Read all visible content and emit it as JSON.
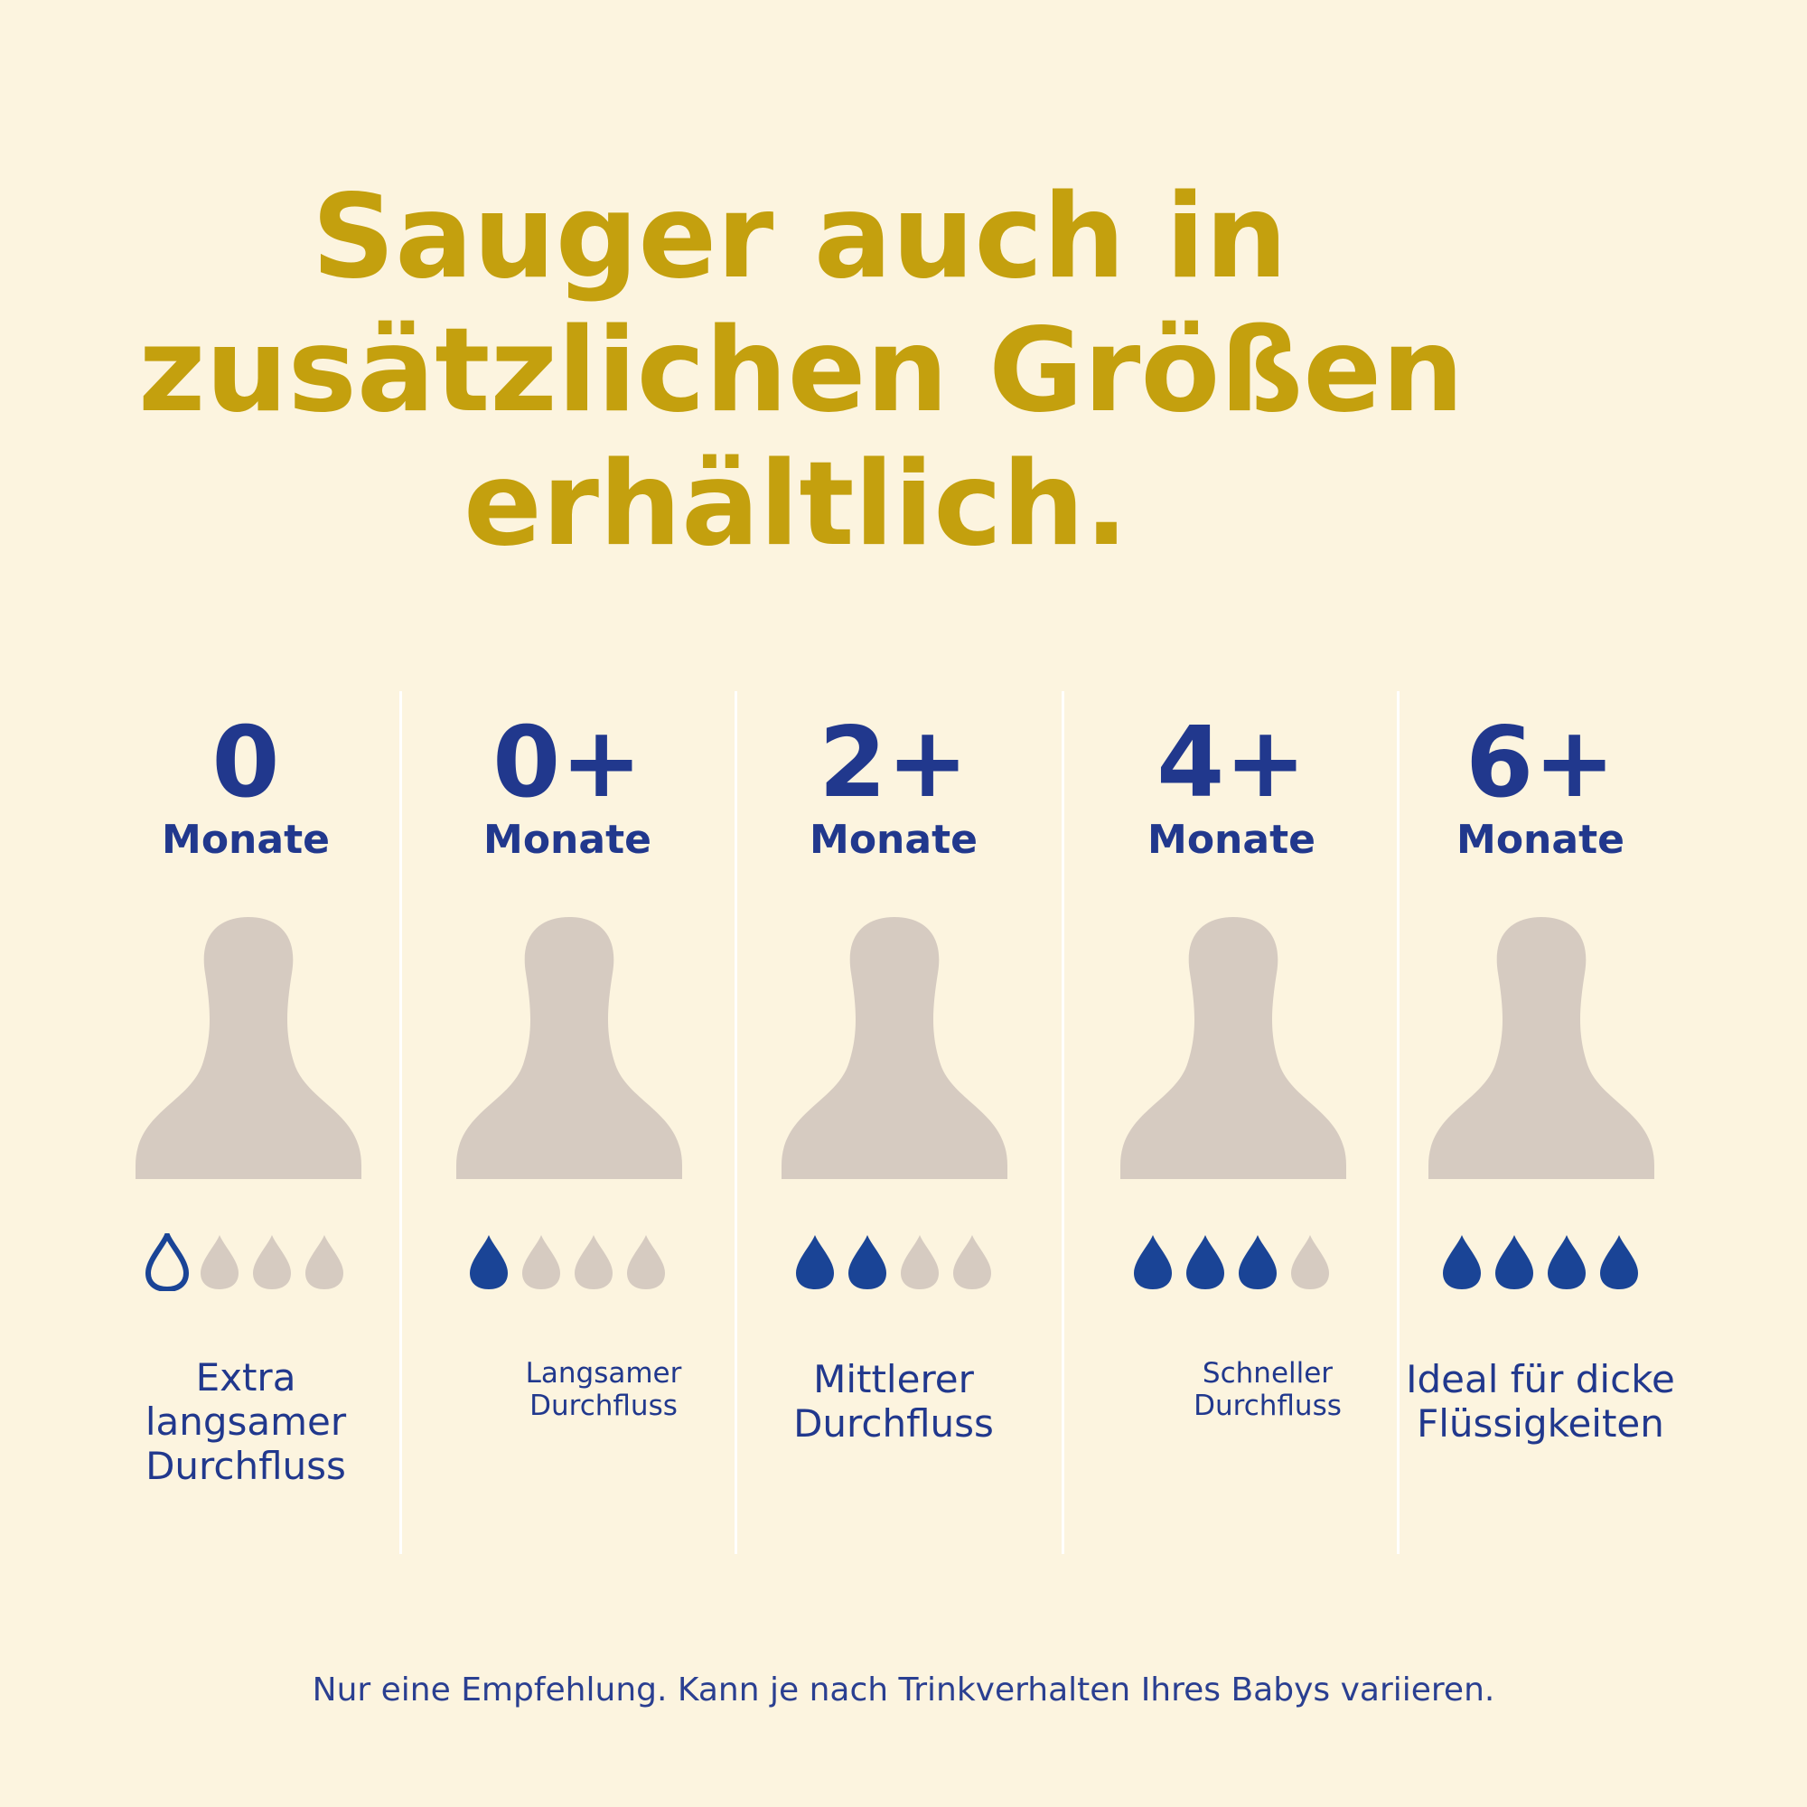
{
  "headline": {
    "line1": "Sauger auch in",
    "line2": "zusätzlichen Größen",
    "line3": "erhältlich."
  },
  "colors": {
    "background": "#fcf4df",
    "headline": "#c4a00e",
    "text_blue": "#21388d",
    "nipple": "#d6cbc1",
    "drop_active": "#1a4496",
    "drop_inactive": "#d6cbc1"
  },
  "nipples": [
    {
      "age": "0",
      "unit": "Monate",
      "flow_level": 0,
      "first_drop_outline": true,
      "description": [
        "Extra",
        "langsamer",
        "Durchfluss"
      ],
      "icon": "nipple-icon"
    },
    {
      "age": "0+",
      "unit": "Monate",
      "flow_level": 1,
      "first_drop_outline": false,
      "description": [
        "Langsamer",
        "Durchfluss"
      ],
      "icon": "nipple-icon"
    },
    {
      "age": "2+",
      "unit": "Monate",
      "flow_level": 2,
      "first_drop_outline": false,
      "description": [
        "Mittlerer",
        "Durchfluss"
      ],
      "icon": "nipple-icon"
    },
    {
      "age": "4+",
      "unit": "Monate",
      "flow_level": 3,
      "first_drop_outline": false,
      "description": [
        "Schneller",
        "Durchfluss"
      ],
      "icon": "nipple-icon"
    },
    {
      "age": "6+",
      "unit": "Monate",
      "flow_level": 4,
      "first_drop_outline": false,
      "description": [
        "Ideal für dicke",
        "Flüssigkeiten"
      ],
      "icon": "nipple-icon"
    }
  ],
  "drops_total": 4,
  "footnote": "Nur eine Empfehlung. Kann je nach Trinkverhalten Ihres Babys variieren."
}
